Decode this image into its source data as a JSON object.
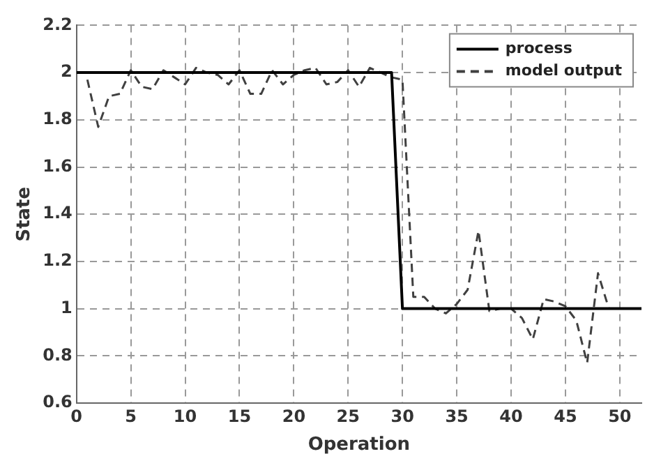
{
  "chart_data": {
    "type": "line",
    "xlabel": "Operation",
    "ylabel": "State",
    "xlim": [
      0,
      52
    ],
    "xticks": [
      0,
      5,
      10,
      15,
      20,
      25,
      30,
      35,
      40,
      45,
      50
    ],
    "ylim": [
      0.6,
      2.2
    ],
    "yticks": [
      0.6,
      0.8,
      1,
      1.2,
      1.4,
      1.6,
      1.8,
      2,
      2.2
    ],
    "grid": true,
    "legend": "top right",
    "marker": "none",
    "series": [
      {
        "name": "process",
        "color": "#000000",
        "line_style": "solid",
        "x": [
          0,
          29,
          30,
          52
        ],
        "values": [
          2,
          2,
          1,
          1
        ]
      },
      {
        "name": "model output",
        "color": "#404040",
        "line_style": "dashed",
        "x": [
          1,
          2,
          3,
          4,
          5,
          6,
          7,
          8,
          9,
          10,
          11,
          12,
          13,
          14,
          15,
          16,
          17,
          18,
          19,
          20,
          21,
          22,
          23,
          24,
          25,
          26,
          27,
          28,
          29,
          30,
          31,
          32,
          33,
          34,
          35,
          36,
          37,
          38,
          39,
          40,
          41,
          42,
          43,
          44,
          45,
          46,
          47,
          48,
          49,
          50
        ],
        "values": [
          1.97,
          1.77,
          1.9,
          1.91,
          2.01,
          1.94,
          1.93,
          2.01,
          1.98,
          1.95,
          2.02,
          2.0,
          1.99,
          1.95,
          2.01,
          1.91,
          1.91,
          2.01,
          1.95,
          1.99,
          2.01,
          2.02,
          1.95,
          1.96,
          2.01,
          1.94,
          2.02,
          2.0,
          1.98,
          1.97,
          1.05,
          1.05,
          1.0,
          0.98,
          1.02,
          1.08,
          1.33,
          0.99,
          1.0,
          1.0,
          0.96,
          0.87,
          1.04,
          1.03,
          1.01,
          0.95,
          0.77,
          1.15,
          1.0,
          1.0
        ]
      }
    ]
  }
}
